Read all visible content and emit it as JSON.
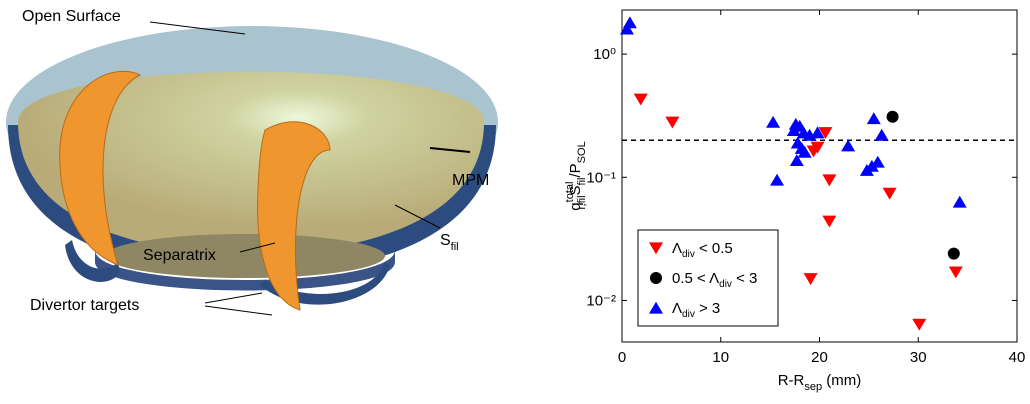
{
  "annotations": {
    "open_surface": "Open Surface",
    "mpm": "MPM",
    "separatrix": "Separatrix",
    "s_fil": {
      "base": "S",
      "sub": "fil"
    },
    "divertor_targets": "Divertor targets"
  },
  "chart_data": {
    "type": "scatter",
    "xlabel": {
      "base": "R-R",
      "sub": "sep",
      "unit": " (mm)"
    },
    "ylabel": {
      "base1": "q",
      "sup1": "total",
      "sub1": "r,fil",
      "base2": "S",
      "sub2": "fil",
      "base3": "/P",
      "sub3": "SOL"
    },
    "xlim": [
      0,
      40
    ],
    "xticks": [
      0,
      10,
      20,
      30,
      40
    ],
    "ylim": [
      0.0046,
      2.28
    ],
    "log_y": true,
    "yticks": [
      {
        "value": 0.01,
        "label": "10⁻²"
      },
      {
        "value": 0.1,
        "label": "10⁻¹"
      },
      {
        "value": 1,
        "label": "10⁰"
      }
    ],
    "hline": 0.2,
    "legend": "lower left",
    "series": [
      {
        "name": [
          "Λ",
          "div",
          " < 0.5"
        ],
        "color": "#ff0000",
        "marker": "triangle-down",
        "x": [
          1.9,
          5.1,
          20.6,
          19.4,
          19.8,
          21,
          21,
          27.1,
          19.1,
          33.8,
          30.1
        ],
        "values": [
          0.43,
          0.28,
          0.23,
          0.163,
          0.175,
          0.095,
          0.044,
          0.074,
          0.015,
          0.017,
          0.0064
        ]
      },
      {
        "name": [
          "0.5 < Λ",
          "div",
          " < 3"
        ],
        "color": "#000000",
        "marker": "circle",
        "x": [
          27.4,
          33.6
        ],
        "values": [
          0.31,
          0.024
        ]
      },
      {
        "name": [
          "Λ",
          "div",
          " > 3"
        ],
        "color": "#0000ff",
        "marker": "triangle-up",
        "x": [
          0.5,
          0.8,
          15.3,
          17.6,
          18.0,
          17.4,
          18.4,
          19,
          19.8,
          17.8,
          18.2,
          18.5,
          17.7,
          15.7,
          22.9,
          25.5,
          26.3,
          24.8,
          25.3,
          25.9,
          34.2
        ],
        "values": [
          1.6,
          1.8,
          0.28,
          0.27,
          0.26,
          0.24,
          0.23,
          0.22,
          0.23,
          0.19,
          0.172,
          0.16,
          0.137,
          0.095,
          0.18,
          0.3,
          0.22,
          0.114,
          0.123,
          0.133,
          0.063
        ]
      }
    ]
  }
}
